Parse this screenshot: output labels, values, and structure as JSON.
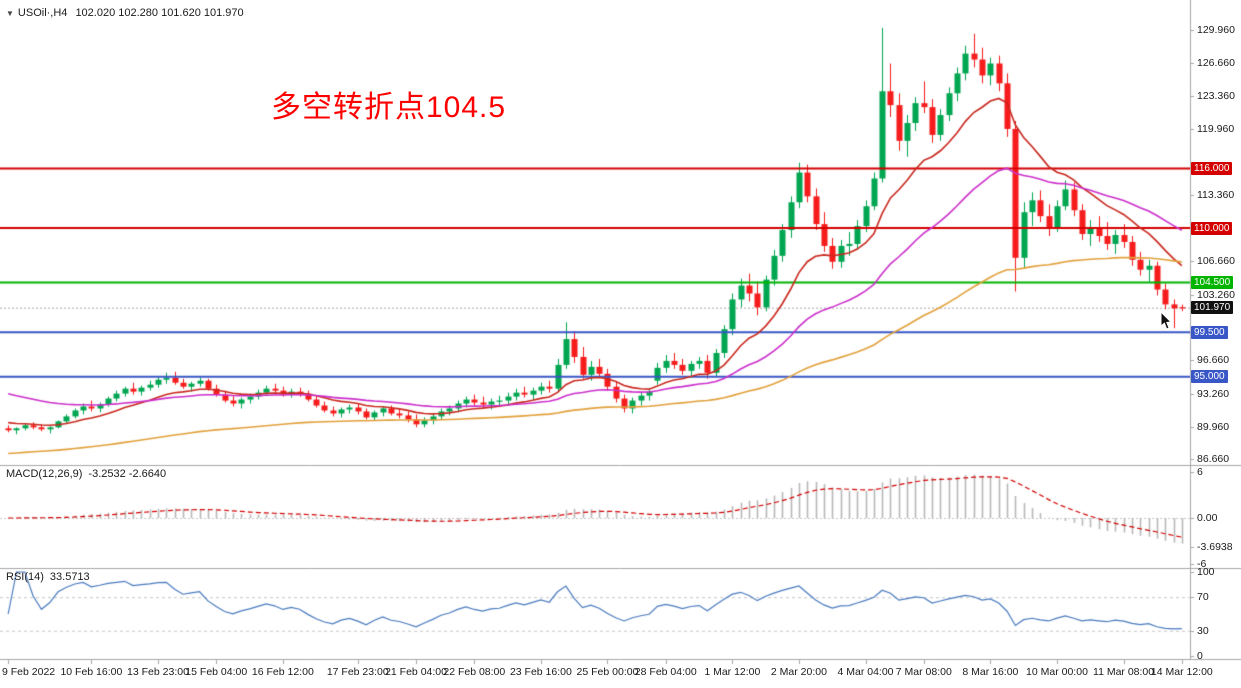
{
  "window": {
    "title": {
      "collapse_icon": "▼",
      "symbol_period": "USOil·,H4",
      "ohlc": "102.020 102.280 101.620 101.970"
    }
  },
  "annotation": {
    "text": "多空转折点104.5",
    "color": "#fe0000"
  },
  "colors": {
    "background": "#ffffff",
    "bull": "#00a651",
    "bear": "#f61c1c",
    "separator": "#a6a6a6",
    "axis_text": "#1b1b1b",
    "macd_hist": "#b8b8b8",
    "macd_signal": "#d40000",
    "rsi_line": "#4a7bbf",
    "level_dashed": "#c9c9c9",
    "current_price_line": "#aaaaaa",
    "current_price_badge": "#111111"
  },
  "price_axis": {
    "ticks": [
      {
        "v": 129.96,
        "label": "129.960"
      },
      {
        "v": 126.66,
        "label": "126.660"
      },
      {
        "v": 123.36,
        "label": "123.360"
      },
      {
        "v": 119.96,
        "label": "119.960"
      },
      {
        "v": 113.36,
        "label": "113.360"
      },
      {
        "v": 106.66,
        "label": "106.660"
      },
      {
        "v": 103.26,
        "label": "103.260"
      },
      {
        "v": 96.66,
        "label": "96.660"
      },
      {
        "v": 93.26,
        "label": "93.260"
      },
      {
        "v": 89.96,
        "label": "89.960"
      },
      {
        "v": 86.66,
        "label": "86.660"
      }
    ]
  },
  "hlines": [
    {
      "value": 116.0,
      "label": "116.000",
      "color": "#d40000"
    },
    {
      "value": 110.0,
      "label": "110.000",
      "color": "#d40000"
    },
    {
      "value": 104.5,
      "label": "104.500",
      "color": "#00b400"
    },
    {
      "value": 99.5,
      "label": "99.500",
      "color": "#3a57c8"
    },
    {
      "value": 95.0,
      "label": "95.000",
      "color": "#3a57c8"
    }
  ],
  "current_price": {
    "value": 101.97,
    "label": "101.970"
  },
  "macd_panel": {
    "label": "MACD(12,26,9)",
    "values": "-3.2532 -2.6640",
    "ticks": [
      {
        "v": 6,
        "label": "6"
      },
      {
        "v": 0,
        "label": "0.00"
      },
      {
        "v": -3.6938,
        "label": "-3.6938"
      },
      {
        "v": -6,
        "label": "-6"
      }
    ]
  },
  "rsi_panel": {
    "label": "RSI(14)",
    "value": "33.5713",
    "levels": [
      70,
      30
    ],
    "ticks": [
      {
        "v": 100,
        "label": "100"
      },
      {
        "v": 70,
        "label": "70"
      },
      {
        "v": 30,
        "label": "30"
      },
      {
        "v": 0,
        "label": "0"
      }
    ]
  },
  "time_axis": {
    "ticks": [
      {
        "i": 0,
        "label": "9 Feb 2022"
      },
      {
        "i": 10,
        "label": "10 Feb 16:00"
      },
      {
        "i": 18,
        "label": "13 Feb 23:00"
      },
      {
        "i": 25,
        "label": "15 Feb 04:00"
      },
      {
        "i": 33,
        "label": "16 Feb 12:00"
      },
      {
        "i": 42,
        "label": "17 Feb 23:00"
      },
      {
        "i": 49,
        "label": "21 Feb 04:00"
      },
      {
        "i": 56,
        "label": "22 Feb 08:00"
      },
      {
        "i": 64,
        "label": "23 Feb 16:00"
      },
      {
        "i": 72,
        "label": "25 Feb 00:00"
      },
      {
        "i": 79,
        "label": "28 Feb 04:00"
      },
      {
        "i": 87,
        "label": "1 Mar 12:00"
      },
      {
        "i": 95,
        "label": "2 Mar 20:00"
      },
      {
        "i": 103,
        "label": "4 Mar 04:00"
      },
      {
        "i": 110,
        "label": "7 Mar 08:00"
      },
      {
        "i": 118,
        "label": "8 Mar 16:00"
      },
      {
        "i": 126,
        "label": "10 Mar 00:00"
      },
      {
        "i": 134,
        "label": "11 Mar 08:00"
      },
      {
        "i": 141,
        "label": "14 Mar 12:00"
      }
    ]
  },
  "chart_data": {
    "type": "candlestick",
    "symbol": "USOil",
    "timeframe": "H4",
    "title": "USOil H4 with MACD(12,26,9) and RSI(14)",
    "price_range": [
      86.2,
      132.2
    ],
    "current_bar_ohlc": [
      102.02,
      102.28,
      101.62,
      101.97
    ],
    "candles": [
      [
        89.8,
        90.1,
        89.4,
        89.6
      ],
      [
        89.6,
        89.9,
        89.2,
        89.8
      ],
      [
        89.8,
        90.3,
        89.6,
        90.1
      ],
      [
        90.1,
        90.4,
        89.7,
        89.9
      ],
      [
        89.9,
        90.2,
        89.5,
        89.7
      ],
      [
        89.7,
        90.0,
        89.3,
        89.9
      ],
      [
        89.9,
        90.6,
        89.8,
        90.5
      ],
      [
        90.5,
        91.2,
        90.3,
        91.0
      ],
      [
        91.0,
        91.8,
        90.8,
        91.6
      ],
      [
        91.6,
        92.3,
        91.2,
        92.0
      ],
      [
        92.0,
        92.6,
        91.5,
        91.8
      ],
      [
        91.8,
        92.4,
        91.4,
        92.2
      ],
      [
        92.2,
        93.0,
        92.0,
        92.8
      ],
      [
        92.8,
        93.6,
        92.5,
        93.3
      ],
      [
        93.3,
        94.0,
        93.0,
        93.8
      ],
      [
        93.8,
        94.4,
        93.2,
        93.5
      ],
      [
        93.5,
        94.1,
        93.1,
        93.9
      ],
      [
        93.9,
        94.6,
        93.6,
        94.2
      ],
      [
        94.2,
        95.0,
        93.9,
        94.7
      ],
      [
        94.7,
        95.4,
        94.3,
        94.9
      ],
      [
        94.9,
        95.5,
        94.2,
        94.4
      ],
      [
        94.4,
        94.8,
        93.8,
        94.0
      ],
      [
        94.0,
        94.5,
        93.5,
        94.3
      ],
      [
        94.3,
        94.9,
        94.0,
        94.6
      ],
      [
        94.6,
        94.8,
        93.6,
        93.8
      ],
      [
        93.8,
        94.2,
        93.0,
        93.2
      ],
      [
        93.2,
        93.6,
        92.4,
        92.6
      ],
      [
        92.6,
        93.1,
        92.0,
        92.3
      ],
      [
        92.3,
        92.9,
        91.8,
        92.7
      ],
      [
        92.7,
        93.3,
        92.3,
        93.0
      ],
      [
        93.0,
        93.7,
        92.7,
        93.4
      ],
      [
        93.4,
        94.1,
        93.1,
        93.8
      ],
      [
        93.8,
        94.3,
        93.3,
        93.6
      ],
      [
        93.6,
        94.0,
        93.0,
        93.2
      ],
      [
        93.2,
        93.8,
        92.9,
        93.5
      ],
      [
        93.5,
        93.9,
        93.0,
        93.3
      ],
      [
        93.3,
        93.6,
        92.5,
        92.7
      ],
      [
        92.7,
        93.0,
        91.9,
        92.1
      ],
      [
        92.1,
        92.5,
        91.4,
        91.6
      ],
      [
        91.6,
        92.0,
        91.0,
        91.3
      ],
      [
        91.3,
        91.9,
        90.9,
        91.7
      ],
      [
        91.7,
        92.2,
        91.3,
        91.9
      ],
      [
        91.9,
        92.3,
        91.2,
        91.5
      ],
      [
        91.5,
        91.8,
        90.7,
        90.9
      ],
      [
        90.9,
        91.6,
        90.6,
        91.4
      ],
      [
        91.4,
        92.0,
        91.0,
        91.8
      ],
      [
        91.8,
        92.1,
        91.1,
        91.3
      ],
      [
        91.3,
        91.7,
        90.8,
        91.1
      ],
      [
        91.1,
        91.5,
        90.4,
        90.7
      ],
      [
        90.7,
        91.2,
        89.9,
        90.2
      ],
      [
        90.2,
        90.9,
        89.9,
        90.6
      ],
      [
        90.6,
        91.3,
        90.2,
        91.0
      ],
      [
        91.0,
        91.8,
        90.7,
        91.5
      ],
      [
        91.5,
        92.1,
        91.1,
        91.8
      ],
      [
        91.8,
        92.6,
        91.4,
        92.3
      ],
      [
        92.3,
        93.0,
        91.9,
        92.7
      ],
      [
        92.7,
        93.2,
        92.1,
        92.4
      ],
      [
        92.4,
        93.0,
        91.8,
        92.2
      ],
      [
        92.2,
        92.8,
        91.7,
        92.5
      ],
      [
        92.5,
        93.1,
        92.0,
        92.6
      ],
      [
        92.6,
        93.4,
        92.2,
        93.0
      ],
      [
        93.0,
        93.8,
        92.6,
        93.4
      ],
      [
        93.4,
        94.0,
        92.9,
        93.2
      ],
      [
        93.2,
        93.9,
        92.7,
        93.6
      ],
      [
        93.6,
        94.4,
        93.2,
        94.0
      ],
      [
        94.0,
        94.6,
        93.4,
        93.8
      ],
      [
        93.8,
        96.8,
        93.5,
        96.2
      ],
      [
        96.2,
        100.5,
        95.8,
        98.8
      ],
      [
        98.8,
        99.6,
        96.4,
        97.0
      ],
      [
        97.0,
        98.0,
        94.8,
        95.2
      ],
      [
        95.2,
        96.6,
        94.6,
        96.0
      ],
      [
        96.0,
        96.8,
        94.9,
        95.3
      ],
      [
        95.3,
        95.8,
        93.6,
        94.0
      ],
      [
        94.0,
        94.5,
        92.4,
        92.8
      ],
      [
        92.8,
        93.2,
        91.4,
        91.8
      ],
      [
        91.8,
        92.9,
        91.3,
        92.6
      ],
      [
        92.6,
        93.4,
        92.1,
        93.1
      ],
      [
        93.1,
        93.8,
        92.6,
        93.5
      ],
      [
        94.6,
        96.4,
        94.2,
        95.9
      ],
      [
        95.9,
        97.2,
        95.4,
        96.6
      ],
      [
        96.6,
        97.4,
        95.8,
        96.2
      ],
      [
        96.2,
        96.8,
        95.2,
        95.6
      ],
      [
        95.6,
        96.6,
        95.1,
        96.3
      ],
      [
        96.3,
        97.0,
        95.8,
        96.6
      ],
      [
        96.6,
        97.2,
        94.8,
        95.4
      ],
      [
        95.4,
        97.8,
        95.0,
        97.4
      ],
      [
        97.4,
        100.2,
        96.9,
        99.8
      ],
      [
        99.8,
        103.4,
        99.2,
        102.8
      ],
      [
        102.8,
        104.9,
        102.0,
        104.2
      ],
      [
        104.2,
        105.4,
        102.6,
        103.4
      ],
      [
        103.4,
        104.6,
        101.2,
        102.0
      ],
      [
        102.0,
        105.2,
        101.6,
        104.8
      ],
      [
        104.8,
        107.8,
        104.2,
        107.2
      ],
      [
        107.2,
        110.4,
        106.6,
        109.8
      ],
      [
        109.8,
        113.2,
        109.0,
        112.6
      ],
      [
        112.6,
        116.6,
        112.0,
        115.6
      ],
      [
        115.6,
        116.4,
        112.6,
        113.2
      ],
      [
        113.2,
        114.0,
        109.8,
        110.4
      ],
      [
        110.4,
        111.6,
        107.6,
        108.2
      ],
      [
        108.2,
        109.0,
        105.9,
        106.6
      ],
      [
        106.6,
        108.8,
        106.0,
        108.2
      ],
      [
        108.2,
        109.6,
        107.2,
        108.4
      ],
      [
        108.4,
        110.8,
        107.8,
        110.2
      ],
      [
        110.2,
        112.8,
        109.6,
        112.2
      ],
      [
        112.2,
        115.6,
        111.8,
        115.0
      ],
      [
        115.0,
        130.2,
        114.6,
        123.8
      ],
      [
        123.8,
        126.6,
        121.2,
        122.4
      ],
      [
        122.4,
        123.6,
        117.8,
        118.8
      ],
      [
        118.8,
        121.4,
        117.2,
        120.6
      ],
      [
        120.6,
        123.2,
        119.8,
        122.6
      ],
      [
        122.6,
        124.8,
        121.6,
        122.2
      ],
      [
        122.2,
        123.0,
        118.6,
        119.4
      ],
      [
        119.4,
        122.0,
        118.8,
        121.4
      ],
      [
        121.4,
        124.2,
        120.8,
        123.6
      ],
      [
        123.6,
        126.2,
        122.8,
        125.6
      ],
      [
        125.6,
        128.4,
        124.9,
        127.6
      ],
      [
        127.6,
        129.6,
        126.2,
        127.0
      ],
      [
        127.0,
        128.2,
        124.6,
        125.4
      ],
      [
        125.4,
        127.2,
        124.4,
        126.6
      ],
      [
        126.6,
        127.4,
        123.8,
        124.6
      ],
      [
        124.6,
        125.6,
        119.2,
        120.0
      ],
      [
        120.0,
        120.8,
        103.6,
        107.0
      ],
      [
        107.0,
        112.6,
        105.9,
        111.6
      ],
      [
        111.6,
        113.6,
        110.2,
        112.8
      ],
      [
        112.8,
        113.8,
        110.6,
        111.2
      ],
      [
        111.2,
        112.4,
        109.2,
        110.0
      ],
      [
        110.0,
        112.8,
        109.6,
        112.2
      ],
      [
        112.2,
        114.8,
        111.8,
        113.9
      ],
      [
        113.9,
        114.6,
        111.2,
        111.8
      ],
      [
        111.8,
        112.4,
        108.8,
        109.4
      ],
      [
        109.4,
        110.8,
        108.2,
        110.1
      ],
      [
        110.1,
        111.2,
        108.6,
        109.2
      ],
      [
        109.2,
        110.6,
        107.8,
        108.4
      ],
      [
        108.4,
        109.8,
        107.4,
        109.3
      ],
      [
        109.3,
        110.4,
        108.0,
        108.6
      ],
      [
        108.6,
        109.2,
        106.2,
        106.8
      ],
      [
        106.8,
        107.6,
        105.2,
        105.8
      ],
      [
        105.8,
        106.8,
        104.6,
        106.2
      ],
      [
        106.2,
        106.6,
        103.2,
        103.8
      ],
      [
        103.8,
        104.4,
        101.8,
        102.3
      ],
      [
        102.3,
        102.8,
        99.9,
        101.9
      ],
      [
        102.02,
        102.28,
        101.62,
        101.97
      ]
    ],
    "moving_averages": [
      {
        "name": "ma-fast",
        "period": 13,
        "color": "#c9281e",
        "width": 1.6,
        "seed": 90.5
      },
      {
        "name": "ma-medium",
        "period": 34,
        "color": "#cc2fcc",
        "width": 1.6,
        "seed": 93.5
      },
      {
        "name": "ma-slow",
        "period": 89,
        "color": "#e2a13c",
        "width": 1.6,
        "seed": 87.2
      }
    ],
    "macd": {
      "params": [
        12,
        26,
        9
      ],
      "last_main": -3.2532,
      "last_signal": -2.664,
      "range": [
        -6.2,
        6.2
      ]
    },
    "rsi": {
      "period": 14,
      "last": 33.5713,
      "range": [
        0,
        100
      ],
      "levels": [
        70,
        30
      ]
    }
  }
}
